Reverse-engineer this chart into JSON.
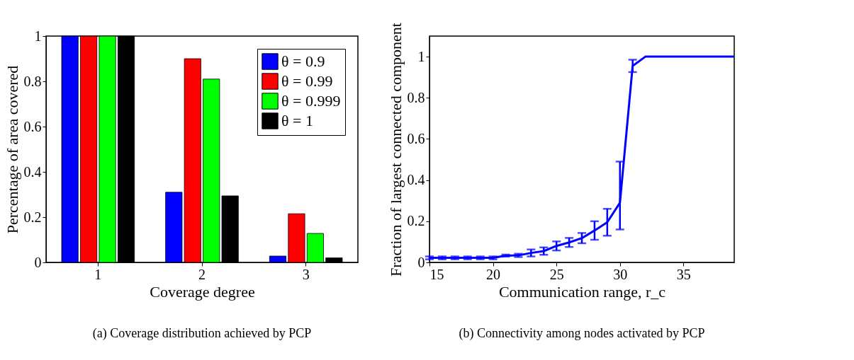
{
  "chart_data": [
    {
      "type": "bar",
      "categories": [
        "1",
        "2",
        "3"
      ],
      "xlabel": "Coverage degree",
      "ylabel": "Percentage of area covered",
      "ylim": [
        0,
        1
      ],
      "yticks": [
        0,
        0.2,
        0.4,
        0.6,
        0.8,
        1
      ],
      "grid": false,
      "legend": "top right",
      "series": [
        {
          "name": "θ = 0.9",
          "color": "#0000ff",
          "values": [
            1,
            0.31,
            0.028
          ]
        },
        {
          "name": "θ = 0.99",
          "color": "#ff0000",
          "values": [
            1,
            0.9,
            0.215
          ]
        },
        {
          "name": "θ = 0.999",
          "color": "#00ff00",
          "values": [
            1,
            0.81,
            0.128
          ]
        },
        {
          "name": "θ = 1",
          "color": "#000000",
          "values": [
            1,
            0.294,
            0.02
          ]
        }
      ],
      "annotations": [
        "(a) Coverage distribution achieved by PCP"
      ]
    },
    {
      "type": "line",
      "x": [
        15,
        16,
        17,
        18,
        19,
        20,
        21,
        22,
        23,
        24,
        25,
        26,
        27,
        28,
        29,
        30,
        31,
        32,
        33,
        34,
        35,
        36,
        37,
        38,
        39
      ],
      "xlabel": "Communication range, r_c",
      "ylabel": "Fraction of largest connected component",
      "xlim": [
        15,
        39
      ],
      "xticks": [
        15,
        20,
        25,
        30,
        35
      ],
      "ylim": [
        0,
        1.1
      ],
      "yticks": [
        0,
        0.2,
        0.4,
        0.6,
        0.8,
        1
      ],
      "grid": false,
      "marker": "none",
      "line_style": "solid",
      "series": [
        {
          "color": "#0000ff",
          "values": [
            0.022,
            0.022,
            0.022,
            0.022,
            0.022,
            0.022,
            0.033,
            0.034,
            0.046,
            0.055,
            0.08,
            0.097,
            0.118,
            0.155,
            0.195,
            0.29,
            0.955,
            1,
            1,
            1,
            1,
            1,
            1,
            1,
            1
          ],
          "errors": [
            0.007,
            0.007,
            0.007,
            0.007,
            0.007,
            0.007,
            0.005,
            0.008,
            0.017,
            0.018,
            0.022,
            0.022,
            0.025,
            0.045,
            0.065,
            [
              0.16,
              0.49
            ],
            [
              0.925,
              0.985
            ],
            null,
            null,
            null,
            null,
            null,
            null,
            null,
            null
          ]
        }
      ],
      "annotations": [
        "(b) Connectivity among nodes activated by PCP"
      ]
    }
  ]
}
